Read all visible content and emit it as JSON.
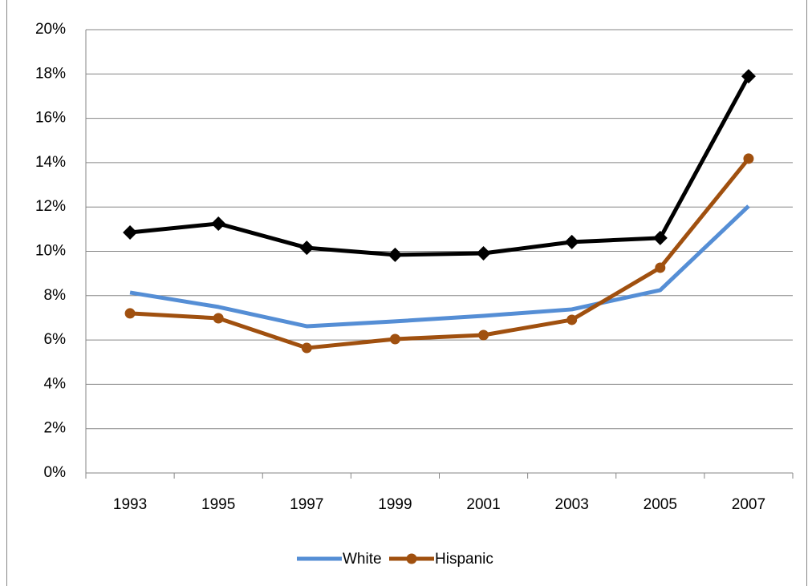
{
  "chart_data": {
    "type": "line",
    "categories": [
      "1993",
      "1995",
      "1997",
      "1999",
      "2001",
      "2003",
      "2005",
      "2007"
    ],
    "series": [
      {
        "color": "#000000",
        "marker": "diamond",
        "values": [
          10.85,
          11.25,
          10.16,
          9.84,
          9.91,
          10.42,
          10.6,
          17.9
        ]
      },
      {
        "name": "White",
        "color": "#558ed5",
        "marker": "none",
        "values": [
          8.14,
          7.49,
          6.62,
          6.84,
          7.09,
          7.38,
          8.25,
          12.04
        ]
      },
      {
        "name": "Hispanic",
        "color": "#a0500f",
        "marker": "circle",
        "values": [
          7.2,
          6.98,
          5.64,
          6.04,
          6.22,
          6.91,
          9.26,
          14.18
        ]
      }
    ],
    "ylim": [
      0,
      20
    ],
    "yticks": [
      {
        "value": 0,
        "label": "0%"
      },
      {
        "value": 2,
        "label": "2%"
      },
      {
        "value": 4,
        "label": "4%"
      },
      {
        "value": 6,
        "label": "6%"
      },
      {
        "value": 8,
        "label": "8%"
      },
      {
        "value": 10,
        "label": "10%"
      },
      {
        "value": 12,
        "label": "12%"
      },
      {
        "value": 14,
        "label": "14%"
      },
      {
        "value": 16,
        "label": "16%"
      },
      {
        "value": 18,
        "label": "18%"
      },
      {
        "value": 20,
        "label": "20%"
      }
    ],
    "grid": true,
    "legend": "bottom"
  }
}
